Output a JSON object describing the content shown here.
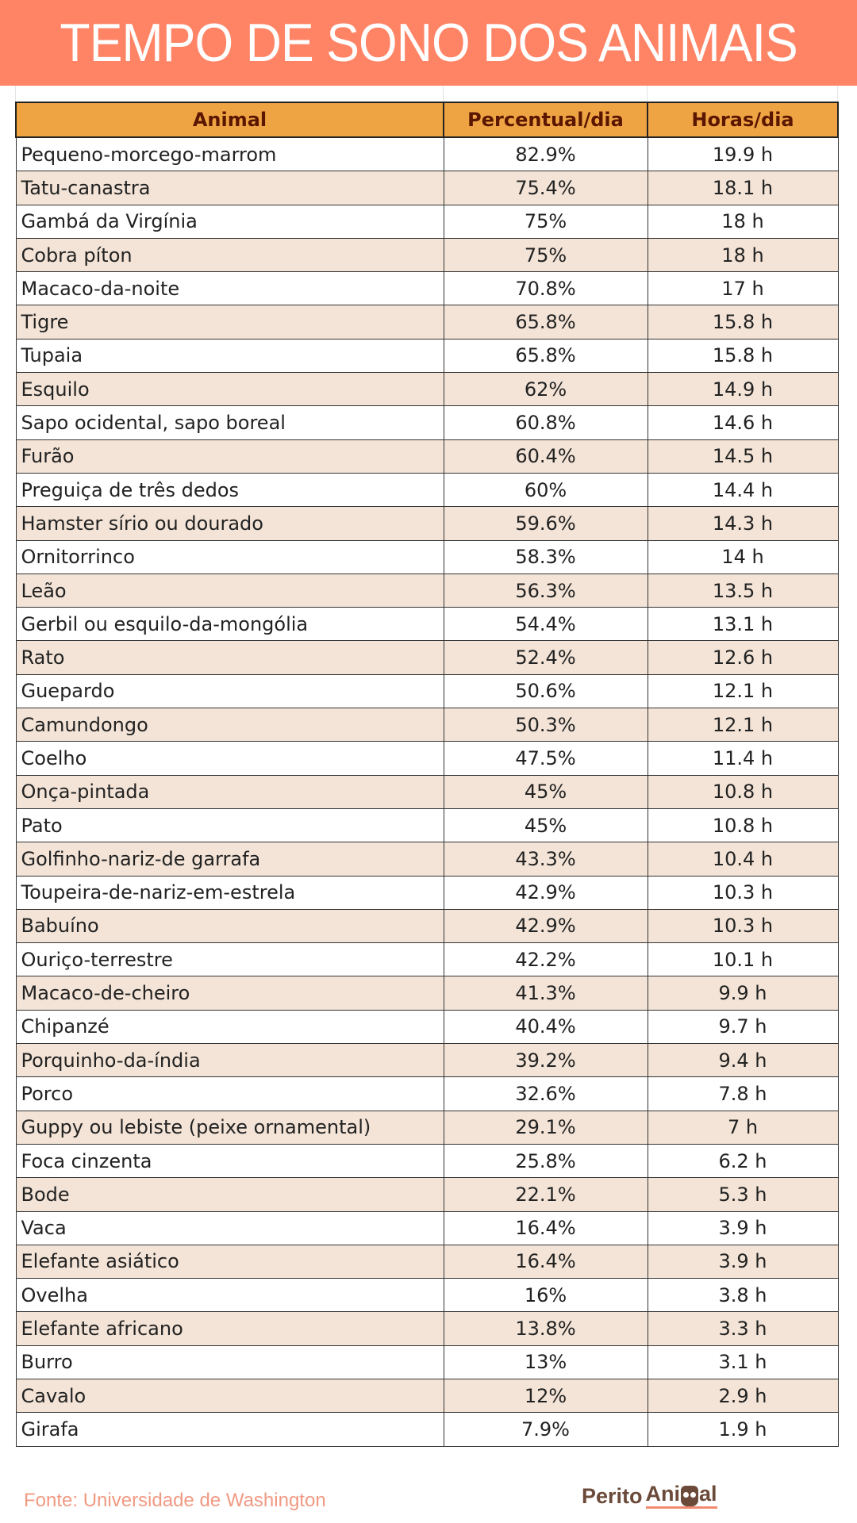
{
  "title": "TEMPO DE SONO DOS ANIMAIS",
  "table": {
    "headers": [
      "Animal",
      "Percentual/dia",
      "Horas/dia"
    ],
    "rows": [
      [
        "Pequeno-morcego-marrom",
        "82.9%",
        "19.9 h"
      ],
      [
        "Tatu-canastra",
        "75.4%",
        "18.1 h"
      ],
      [
        "Gambá da Virgínia",
        "75%",
        "18 h"
      ],
      [
        "Cobra píton",
        "75%",
        "18 h"
      ],
      [
        "Macaco-da-noite",
        "70.8%",
        "17 h"
      ],
      [
        "Tigre",
        "65.8%",
        "15.8 h"
      ],
      [
        "Tupaia",
        "65.8%",
        "15.8 h"
      ],
      [
        "Esquilo",
        "62%",
        "14.9 h"
      ],
      [
        "Sapo ocidental, sapo boreal",
        "60.8%",
        "14.6 h"
      ],
      [
        "Furão",
        "60.4%",
        "14.5 h"
      ],
      [
        "Preguiça de três dedos",
        "60%",
        "14.4 h"
      ],
      [
        "Hamster sírio ou dourado",
        "59.6%",
        "14.3 h"
      ],
      [
        "Ornitorrinco",
        "58.3%",
        "14 h"
      ],
      [
        "Leão",
        "56.3%",
        "13.5 h"
      ],
      [
        "Gerbil ou esquilo-da-mongólia",
        "54.4%",
        "13.1 h"
      ],
      [
        "Rato",
        "52.4%",
        "12.6 h"
      ],
      [
        "Guepardo",
        "50.6%",
        "12.1 h"
      ],
      [
        "Camundongo",
        "50.3%",
        "12.1 h"
      ],
      [
        "Coelho",
        "47.5%",
        "11.4 h"
      ],
      [
        "Onça-pintada",
        "45%",
        "10.8 h"
      ],
      [
        "Pato",
        "45%",
        "10.8 h"
      ],
      [
        "Golfinho-nariz-de garrafa",
        "43.3%",
        "10.4 h"
      ],
      [
        "Toupeira-de-nariz-em-estrela",
        "42.9%",
        "10.3 h"
      ],
      [
        "Babuíno",
        "42.9%",
        "10.3 h"
      ],
      [
        "Ouriço-terrestre",
        "42.2%",
        "10.1 h"
      ],
      [
        "Macaco-de-cheiro",
        "41.3%",
        "9.9 h"
      ],
      [
        "Chipanzé",
        "40.4%",
        "9.7 h"
      ],
      [
        "Porquinho-da-índia",
        "39.2%",
        "9.4 h"
      ],
      [
        "Porco",
        "32.6%",
        "7.8 h"
      ],
      [
        "Guppy ou lebiste (peixe ornamental)",
        "29.1%",
        "7 h"
      ],
      [
        "Foca cinzenta",
        "25.8%",
        "6.2 h"
      ],
      [
        "Bode",
        "22.1%",
        "5.3 h"
      ],
      [
        "Vaca",
        "16.4%",
        "3.9 h"
      ],
      [
        "Elefante asiático",
        "16.4%",
        "3.9 h"
      ],
      [
        "Ovelha",
        "16%",
        "3.8 h"
      ],
      [
        "Elefante africano",
        "13.8%",
        "3.3 h"
      ],
      [
        "Burro",
        "13%",
        "3.1 h"
      ],
      [
        "Cavalo",
        "12%",
        "2.9 h"
      ],
      [
        "Girafa",
        "7.9%",
        "1.9 h"
      ]
    ]
  },
  "footer": {
    "source": "Fonte: Universidade de Washington",
    "logo_text_1": "Perito",
    "logo_text_2a": "Ani",
    "logo_text_2b": "al"
  }
}
